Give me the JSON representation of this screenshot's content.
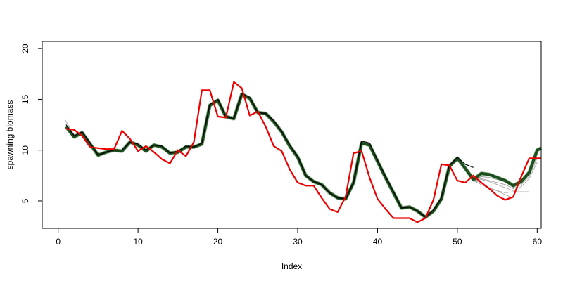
{
  "chart_data": {
    "type": "line",
    "title": "",
    "xlabel": "Index",
    "ylabel": "spawning biomass",
    "xlim": [
      -2,
      60.5
    ],
    "ylim": [
      2.3,
      20.7
    ],
    "xticks": [
      0,
      10,
      20,
      30,
      40,
      50,
      60
    ],
    "yticks": [
      5,
      10,
      15,
      20
    ],
    "grid": false,
    "legend": "none",
    "series": [
      {
        "color": "#1e4d1e",
        "role": "estimate-bundle",
        "x": [
          1,
          2,
          3,
          4,
          5,
          6,
          7,
          8,
          9,
          10,
          11,
          12,
          13,
          14,
          15,
          16,
          17,
          18,
          19,
          20,
          21,
          22,
          23,
          24,
          25,
          26,
          27,
          28,
          29,
          30,
          31,
          32,
          33,
          34,
          35,
          36,
          37,
          38,
          39,
          40,
          41,
          42,
          43,
          44,
          45,
          46,
          47,
          48,
          49,
          50,
          51,
          52,
          53,
          54,
          55,
          56,
          57,
          58,
          59,
          60,
          60.5
        ],
        "values": [
          12.3,
          11.3,
          11.7,
          10.6,
          9.5,
          9.8,
          10.0,
          9.9,
          10.8,
          10.5,
          9.9,
          10.5,
          10.3,
          9.7,
          9.8,
          10.3,
          10.3,
          10.6,
          14.4,
          14.9,
          13.3,
          13.1,
          15.5,
          15.1,
          13.7,
          13.6,
          12.8,
          11.8,
          10.4,
          9.3,
          7.5,
          6.9,
          6.6,
          5.8,
          5.3,
          5.2,
          6.8,
          10.7,
          10.5,
          8.9,
          7.3,
          5.8,
          4.3,
          4.4,
          4.0,
          3.4,
          4.0,
          5.2,
          8.4,
          9.2,
          8.2,
          7.1,
          7.7,
          7.6,
          7.3,
          7.0,
          6.5,
          6.9,
          7.8,
          10.0,
          10.2
        ]
      },
      {
        "color": "#000000",
        "role": "estimate",
        "x": [
          1,
          2,
          3,
          4,
          5,
          6,
          7,
          8,
          9,
          10,
          11,
          12,
          13,
          14,
          15,
          16,
          17,
          18,
          19,
          20,
          21,
          22,
          23,
          24,
          25,
          26,
          27,
          28,
          29,
          30,
          31,
          32,
          33,
          34,
          35,
          36,
          37,
          38,
          39,
          40,
          41,
          42,
          43,
          44,
          45,
          46,
          47,
          48,
          49,
          50,
          51,
          52
        ],
        "values": [
          12.5,
          11.4,
          11.8,
          10.7,
          9.5,
          9.8,
          10.0,
          10.0,
          10.8,
          10.6,
          10.0,
          10.5,
          10.4,
          9.7,
          9.9,
          10.4,
          10.3,
          10.7,
          14.5,
          15.0,
          13.3,
          13.1,
          15.6,
          15.2,
          13.7,
          13.6,
          12.9,
          11.8,
          10.5,
          9.4,
          7.5,
          6.9,
          6.6,
          5.8,
          5.3,
          5.2,
          6.8,
          10.9,
          10.7,
          9.0,
          7.4,
          5.9,
          4.3,
          4.4,
          4.0,
          3.4,
          4.1,
          5.3,
          8.5,
          9.3,
          8.6,
          8.3
        ]
      },
      {
        "color": "#ee0000",
        "role": "observed",
        "x": [
          1,
          2,
          3,
          4,
          5,
          6,
          7,
          8,
          9,
          10,
          11,
          12,
          13,
          14,
          15,
          16,
          17,
          18,
          19,
          20,
          21,
          22,
          23,
          24,
          25,
          26,
          27,
          28,
          29,
          30,
          31,
          32,
          33,
          34,
          35,
          36,
          37,
          38,
          39,
          40,
          41,
          42,
          43,
          44,
          45,
          46,
          47,
          48,
          49,
          50,
          51,
          52,
          53,
          54,
          55,
          56,
          57,
          58,
          59,
          60,
          60.5
        ],
        "values": [
          12.1,
          12.0,
          11.4,
          10.3,
          10.2,
          10.1,
          10.1,
          11.9,
          11.1,
          9.9,
          10.4,
          9.8,
          9.1,
          8.7,
          10.0,
          9.4,
          10.8,
          15.9,
          15.9,
          13.3,
          13.2,
          16.7,
          16.1,
          13.4,
          13.8,
          12.3,
          10.4,
          9.9,
          8.1,
          6.8,
          6.5,
          6.5,
          5.3,
          4.2,
          3.9,
          5.4,
          9.7,
          9.9,
          7.3,
          5.2,
          4.2,
          3.3,
          3.3,
          3.3,
          2.9,
          3.3,
          5.1,
          8.6,
          8.5,
          7.0,
          6.8,
          7.5,
          6.8,
          6.2,
          5.5,
          5.1,
          5.4,
          7.4,
          9.2,
          9.2,
          9.2
        ]
      }
    ],
    "gray_curves": [
      {
        "x": [
          52,
          53,
          54,
          55,
          56,
          57,
          58,
          59
        ],
        "values": [
          7.0,
          6.6,
          6.2,
          6.0,
          5.8,
          5.9,
          5.9,
          5.9
        ]
      },
      {
        "x": [
          52,
          53,
          54,
          55,
          56,
          57
        ],
        "values": [
          7.0,
          6.8,
          6.3,
          6.0,
          5.6,
          5.3
        ]
      },
      {
        "x": [
          52,
          53,
          54,
          55,
          56,
          57,
          58,
          59,
          60
        ],
        "values": [
          7.0,
          7.1,
          6.9,
          6.6,
          6.3,
          6.0,
          6.4,
          7.2,
          8.8
        ]
      },
      {
        "x": [
          52,
          53,
          54,
          55,
          56,
          57,
          58,
          59,
          60
        ],
        "values": [
          7.0,
          7.2,
          7.0,
          6.8,
          6.6,
          6.2,
          6.6,
          7.4,
          9.2
        ]
      },
      {
        "x": [
          52,
          53,
          54,
          55,
          56,
          57,
          58,
          59,
          60
        ],
        "values": [
          7.0,
          7.4,
          7.3,
          7.1,
          6.9,
          6.5,
          6.8,
          7.6,
          9.6
        ]
      },
      {
        "x": [
          52,
          53,
          54,
          55,
          56,
          57,
          58,
          59,
          60,
          60.5
        ],
        "values": [
          7.1,
          7.6,
          7.5,
          7.3,
          7.1,
          6.7,
          7.0,
          7.8,
          9.9,
          10.1
        ]
      },
      {
        "x": [
          0.8,
          1.5,
          2,
          3,
          4
        ],
        "values": [
          13.1,
          12.1,
          11.5,
          11.9,
          10.8
        ]
      }
    ]
  }
}
